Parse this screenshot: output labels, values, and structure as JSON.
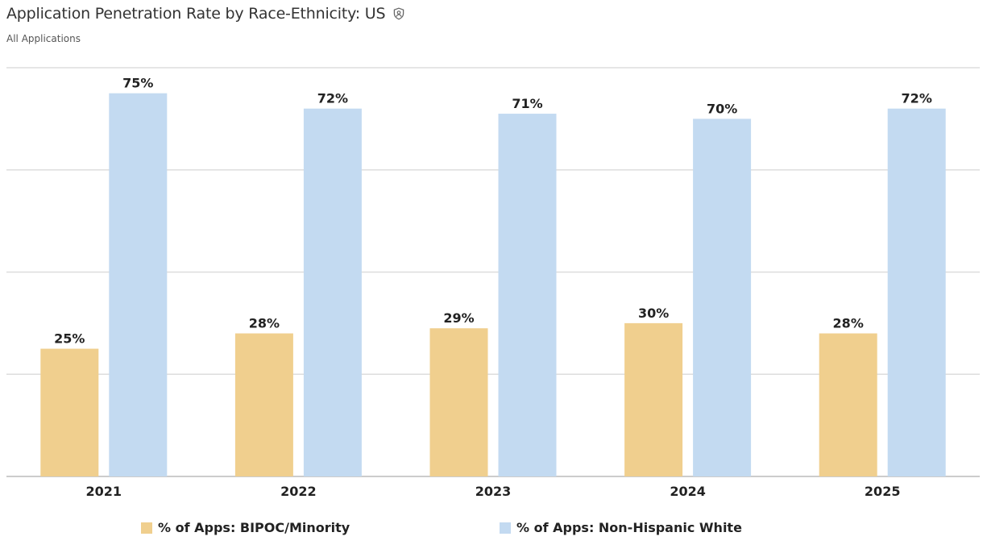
{
  "header": {
    "title": "Application Penetration Rate by Race-Ethnicity: US",
    "title_icon": "shield-person-icon",
    "subtitle": "All Applications"
  },
  "colors": {
    "series_1": "#F0CF8E",
    "series_2": "#C3DAF1",
    "grid": "#dddddd",
    "axis": "#bbbbbb"
  },
  "chart_data": {
    "type": "bar",
    "title": "Application Penetration Rate by Race-Ethnicity: US",
    "subtitle": "All Applications",
    "categories": [
      "2021",
      "2022",
      "2023",
      "2024",
      "2025"
    ],
    "series": [
      {
        "name": "% of Apps: BIPOC/Minority",
        "values": [
          25,
          28,
          29,
          30,
          28
        ],
        "labels": [
          "25%",
          "28%",
          "29%",
          "30%",
          "28%"
        ]
      },
      {
        "name": "% of Apps: Non-Hispanic White",
        "values": [
          75,
          72,
          71,
          70,
          72
        ],
        "labels": [
          "75%",
          "72%",
          "71%",
          "70%",
          "72%"
        ]
      }
    ],
    "ylim": [
      0,
      80
    ],
    "grid": true,
    "y_tick_labels_shown": false,
    "legend_position": "bottom"
  }
}
